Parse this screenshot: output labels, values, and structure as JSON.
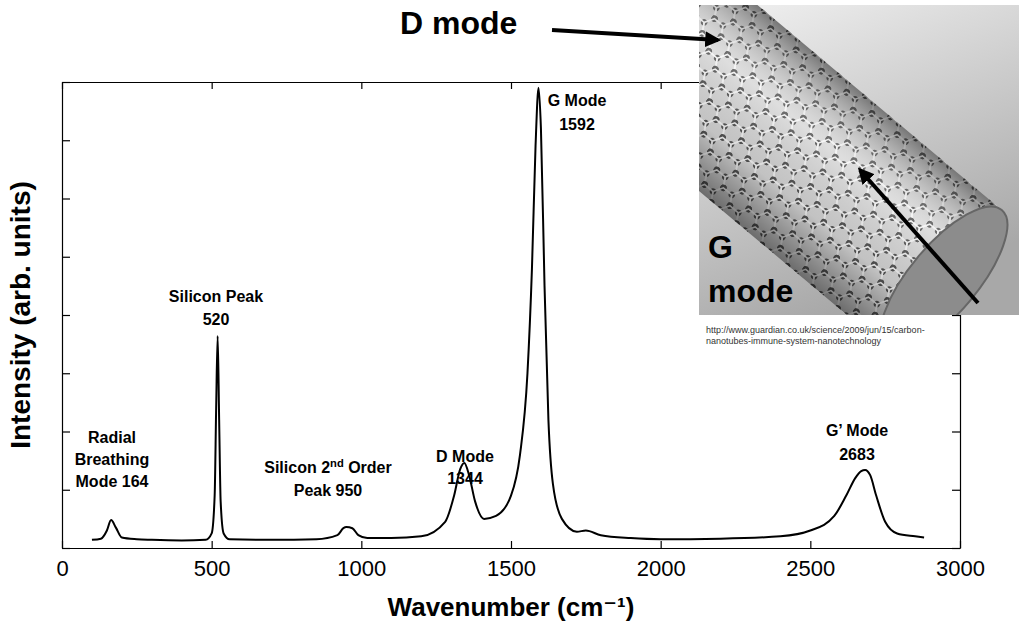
{
  "chart_data": {
    "type": "line",
    "xlabel": "Wavenumber (cm⁻¹)",
    "ylabel": "Intensity (arb. units)",
    "x": [
      100,
      130,
      150,
      164,
      180,
      200,
      250,
      300,
      400,
      480,
      500,
      510,
      515,
      520,
      525,
      530,
      540,
      560,
      700,
      850,
      920,
      940,
      950,
      970,
      990,
      1020,
      1100,
      1200,
      1280,
      1310,
      1330,
      1344,
      1360,
      1380,
      1410,
      1450,
      1500,
      1530,
      1555,
      1570,
      1582,
      1592,
      1600,
      1612,
      1625,
      1640,
      1670,
      1720,
      1750,
      1800,
      1900,
      2000,
      2200,
      2400,
      2500,
      2580,
      2620,
      2650,
      2670,
      2683,
      2700,
      2720,
      2750,
      2790,
      2850,
      2880
    ],
    "values": [
      0.14,
      0.16,
      0.3,
      0.48,
      0.35,
      0.18,
      0.15,
      0.14,
      0.13,
      0.14,
      0.25,
      0.9,
      2.4,
      3.64,
      2.2,
      0.8,
      0.25,
      0.15,
      0.14,
      0.15,
      0.22,
      0.34,
      0.36,
      0.34,
      0.22,
      0.17,
      0.17,
      0.2,
      0.45,
      0.9,
      1.35,
      1.46,
      1.25,
      0.8,
      0.5,
      0.55,
      0.9,
      1.6,
      3.0,
      4.8,
      6.9,
      7.9,
      7.2,
      4.5,
      2.2,
      1.1,
      0.5,
      0.28,
      0.3,
      0.22,
      0.17,
      0.15,
      0.16,
      0.2,
      0.3,
      0.55,
      0.9,
      1.2,
      1.32,
      1.34,
      1.25,
      0.9,
      0.45,
      0.25,
      0.2,
      0.18
    ],
    "color": "#000000",
    "xlim": [
      0,
      3000
    ],
    "xticks": [
      0,
      500,
      1000,
      1500,
      2000,
      2500,
      3000
    ],
    "ylim": [
      0,
      8
    ],
    "yticks": [
      0,
      1,
      2,
      3,
      4,
      5,
      6,
      7,
      8
    ],
    "tick_labels": "x",
    "grid": false,
    "annotations": [
      {
        "lines": [
          "Radial",
          "Breathing",
          "Mode 164"
        ]
      },
      {
        "lines": [
          "Silicon Peak",
          "520"
        ]
      },
      {
        "lines": [
          "Silicon 2nd Order",
          "Peak 950"
        ]
      },
      {
        "lines": [
          "D Mode",
          "1344"
        ]
      },
      {
        "lines": [
          "G Mode",
          "1592"
        ]
      },
      {
        "lines": [
          "G’ Mode",
          "2683"
        ]
      },
      {
        "lines": [
          "D mode"
        ]
      },
      {
        "lines": [
          "G",
          "mode"
        ]
      }
    ],
    "source": [
      "http://www.guardian.co.uk/science/2009/jun/15/carbon-",
      "nanotubes-immune-system-nanotechnology"
    ]
  }
}
